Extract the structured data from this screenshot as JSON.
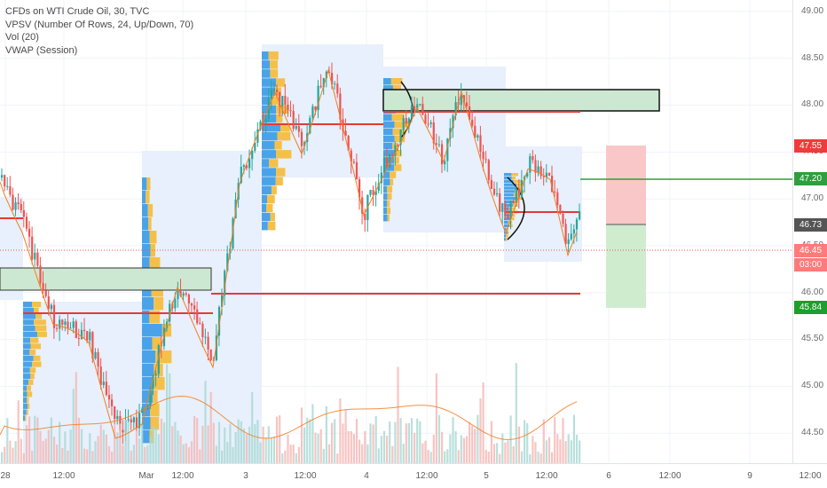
{
  "legend": {
    "symbol": "CFDs on WTI Crude Oil, 30, TVC",
    "indicator_vpsv": "VPSV (Number Of Rows, 24, Up/Down, 70)",
    "indicator_vol": "Vol (20)",
    "indicator_vwap": "VWAP (Session)"
  },
  "price_axis": {
    "ticks": [
      "49.00",
      "48.50",
      "48.00",
      "47.50",
      "47.00",
      "46.50",
      "46.00",
      "45.50",
      "45.00",
      "44.50"
    ],
    "badges": {
      "stop_loss": {
        "text": "47.55",
        "color": "#ef3b3b"
      },
      "level": {
        "text": "47.20",
        "color": "#2e9e3f"
      },
      "last_close": {
        "text": "46.73",
        "color": "#555555"
      },
      "current_price": {
        "text": "46.45",
        "color": "#ff7a7a"
      },
      "countdown": {
        "text": "03:00",
        "color": "#ff7a7a"
      },
      "take_profit": {
        "text": "45.84",
        "color": "#1e9e2a"
      }
    }
  },
  "time_axis": {
    "labels": [
      "28",
      "12:00",
      "Mar",
      "12:00",
      "3",
      "12:00",
      "4",
      "12:00",
      "5",
      "12:00",
      "6",
      "12:00",
      "9",
      "12:00"
    ]
  },
  "colors": {
    "up_candle": "#26a69a",
    "down_candle": "#ef5350",
    "vp_up": "#4aa3e8",
    "vp_down": "#f5c04a",
    "vwap": "#f57c1f",
    "level_red": "#e53935",
    "level_green": "#2e9e3f",
    "zone_green": "#cde8d2",
    "profile_bg": "#e7f0fc"
  }
}
